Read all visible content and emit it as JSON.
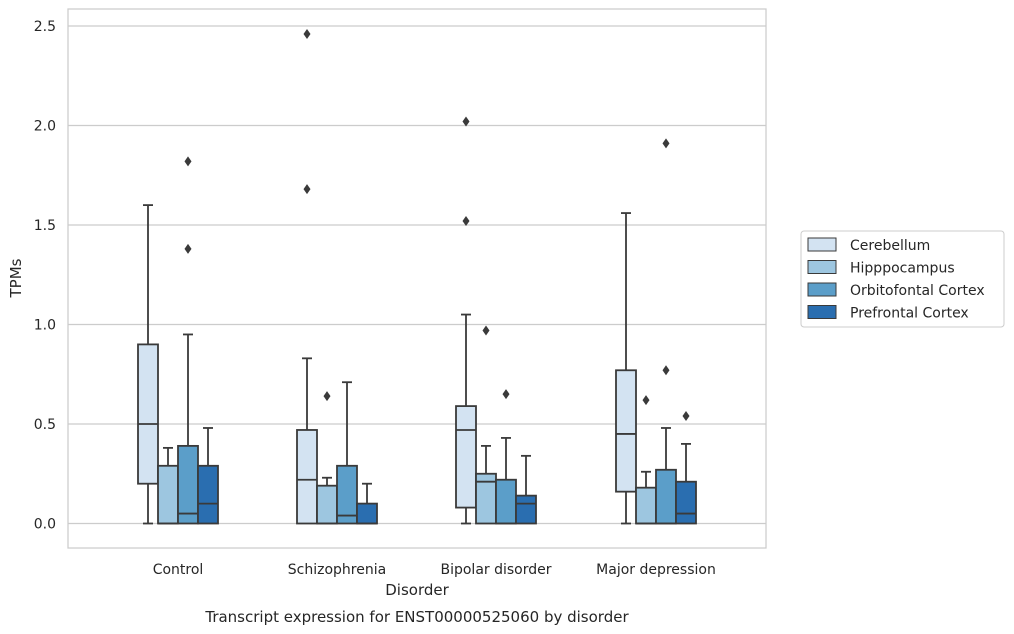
{
  "caption": "Transcript expression for ENST00000525060 by disorder",
  "chart_data": {
    "type": "boxplot",
    "title": "",
    "xlabel": "Disorder",
    "ylabel": "TPMs",
    "ylim": [
      -0.12,
      2.6
    ],
    "yticks": [
      "0.0",
      "0.5",
      "1.0",
      "1.5",
      "2.0",
      "2.5"
    ],
    "grid": "horizontal",
    "legend_position": "right",
    "categories": [
      "Control",
      "Schizophrenia",
      "Bipolar disorder",
      "Major depression"
    ],
    "series": [
      {
        "name": "Cerebellum",
        "color": "#d3e3f2",
        "boxes": [
          {
            "whislo": 0.0,
            "q1": 0.2,
            "med": 0.5,
            "q3": 0.9,
            "whishi": 1.6,
            "fliers": []
          },
          {
            "whislo": 0.0,
            "q1": 0.0,
            "med": 0.22,
            "q3": 0.47,
            "whishi": 0.83,
            "fliers": [
              1.68,
              2.46
            ]
          },
          {
            "whislo": 0.0,
            "q1": 0.08,
            "med": 0.47,
            "q3": 0.59,
            "whishi": 1.05,
            "fliers": [
              1.52,
              2.02
            ]
          },
          {
            "whislo": 0.0,
            "q1": 0.16,
            "med": 0.45,
            "q3": 0.77,
            "whishi": 1.56,
            "fliers": []
          }
        ]
      },
      {
        "name": "Hipppocampus",
        "color": "#9dc6e0",
        "boxes": [
          {
            "whislo": 0.0,
            "q1": 0.0,
            "med": 0.0,
            "q3": 0.29,
            "whishi": 0.38,
            "fliers": []
          },
          {
            "whislo": 0.0,
            "q1": 0.0,
            "med": 0.0,
            "q3": 0.19,
            "whishi": 0.23,
            "fliers": [
              0.64
            ]
          },
          {
            "whislo": 0.0,
            "q1": 0.0,
            "med": 0.21,
            "q3": 0.25,
            "whishi": 0.39,
            "fliers": [
              0.97
            ]
          },
          {
            "whislo": 0.0,
            "q1": 0.0,
            "med": 0.0,
            "q3": 0.18,
            "whishi": 0.26,
            "fliers": [
              0.62
            ]
          }
        ]
      },
      {
        "name": "Orbitofontal Cortex",
        "color": "#5b9ec9",
        "boxes": [
          {
            "whislo": 0.0,
            "q1": 0.0,
            "med": 0.05,
            "q3": 0.39,
            "whishi": 0.95,
            "fliers": [
              1.38,
              1.82
            ]
          },
          {
            "whislo": 0.0,
            "q1": 0.0,
            "med": 0.04,
            "q3": 0.29,
            "whishi": 0.71,
            "fliers": []
          },
          {
            "whislo": 0.0,
            "q1": 0.0,
            "med": 0.0,
            "q3": 0.22,
            "whishi": 0.43,
            "fliers": [
              0.65
            ]
          },
          {
            "whislo": 0.0,
            "q1": 0.0,
            "med": 0.0,
            "q3": 0.27,
            "whishi": 0.48,
            "fliers": [
              0.77,
              1.91
            ]
          }
        ]
      },
      {
        "name": "Prefrontal Cortex",
        "color": "#2a6eb0",
        "boxes": [
          {
            "whislo": 0.0,
            "q1": 0.0,
            "med": 0.1,
            "q3": 0.29,
            "whishi": 0.48,
            "fliers": []
          },
          {
            "whislo": 0.0,
            "q1": 0.0,
            "med": 0.0,
            "q3": 0.1,
            "whishi": 0.2,
            "fliers": []
          },
          {
            "whislo": 0.0,
            "q1": 0.0,
            "med": 0.1,
            "q3": 0.14,
            "whishi": 0.34,
            "fliers": []
          },
          {
            "whislo": 0.0,
            "q1": 0.0,
            "med": 0.05,
            "q3": 0.21,
            "whishi": 0.4,
            "fliers": [
              0.54
            ]
          }
        ]
      }
    ]
  }
}
